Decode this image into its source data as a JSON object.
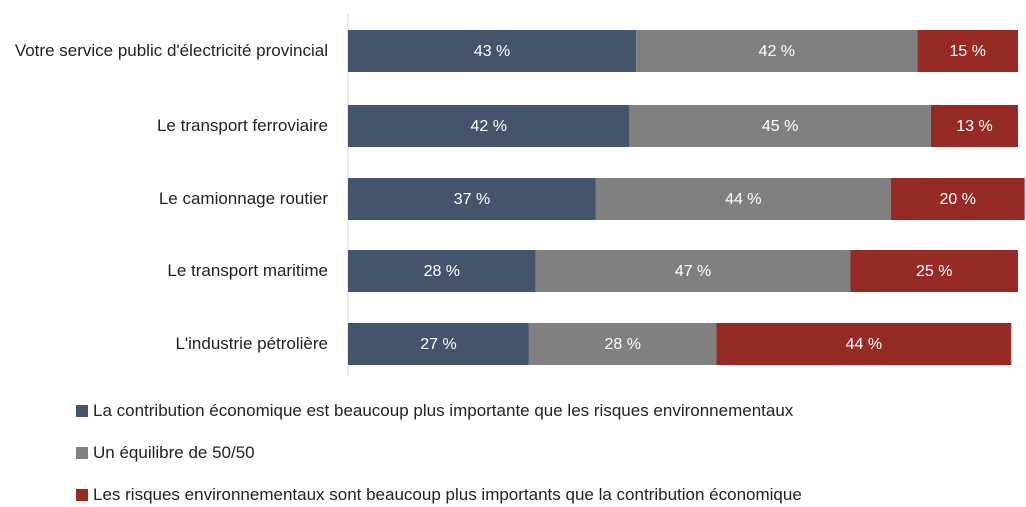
{
  "chart_data": {
    "type": "stacked_barh",
    "categories": [
      "Votre service public d'électricité provincial",
      "Le transport ferroviaire",
      "Le camionnage routier",
      "Le transport maritime",
      "L'industrie pétrolière"
    ],
    "series": [
      {
        "name": "La contribution économique est beaucoup plus importante que les risques environnementaux",
        "color": "#44546a",
        "values": [
          43,
          42,
          37,
          28,
          27
        ],
        "value_labels": [
          "43 %",
          "42 %",
          "37 %",
          "28 %",
          "27 %"
        ]
      },
      {
        "name": "Un équilibre de 50/50",
        "color": "#808080",
        "values": [
          42,
          45,
          44,
          47,
          28
        ],
        "value_labels": [
          "42 %",
          "45 %",
          "44 %",
          "47 %",
          "28 %"
        ]
      },
      {
        "name": "Les risques environnementaux sont beaucoup plus importants que la contribution économique",
        "color": "#962a25",
        "values": [
          15,
          13,
          20,
          25,
          44
        ],
        "value_labels": [
          "15 %",
          "13 %",
          "20 %",
          "25 %",
          "44 %"
        ]
      }
    ],
    "xlim": [
      0,
      100
    ]
  }
}
